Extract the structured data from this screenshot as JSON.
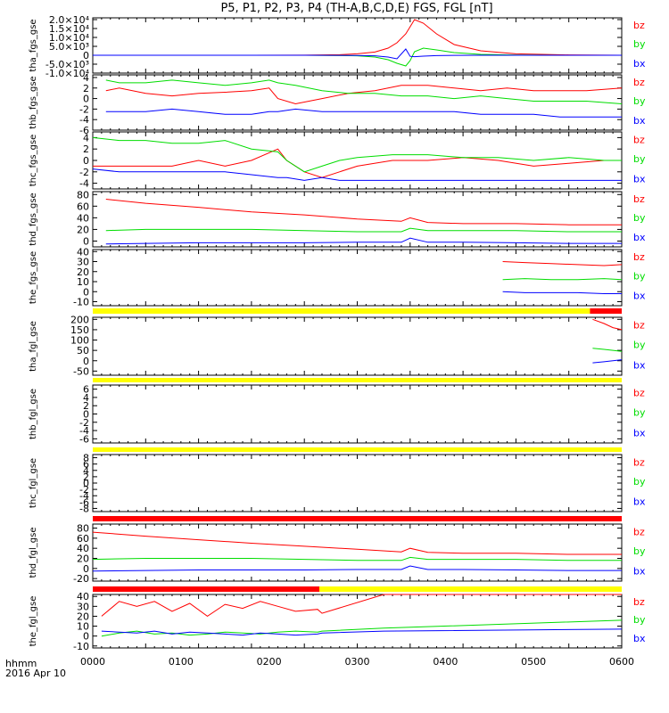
{
  "title": "P5, P1, P2, P3, P4 (TH-A,B,C,D,E) FGS, FGL [nT]",
  "xaxis": {
    "tick_labels": [
      "0000",
      "0100",
      "0200",
      "0300",
      "0400",
      "0500",
      "0600"
    ],
    "footer_left": "hhmm",
    "footer_date": "2016 Apr 10"
  },
  "colors": {
    "bz": "#ff0000",
    "by": "#00dd00",
    "bx": "#0000ff",
    "bar_yellow": "#ffff00",
    "bar_red": "#ff0000"
  },
  "chart_data": [
    {
      "type": "line",
      "ylabel": "tha_fgs_gse",
      "ytick_labels": [
        "2.0×10⁴",
        "1.5×10⁴",
        "1.0×10⁴",
        "5.0×10³",
        "0",
        "-5.0×10³",
        "-1.0×10⁴"
      ],
      "ytick_values": [
        20000,
        15000,
        10000,
        5000,
        0,
        -5000,
        -10000
      ],
      "ylim": [
        -10000,
        21000
      ],
      "x": [
        0,
        180,
        240,
        280,
        300,
        320,
        335,
        345,
        355,
        360,
        365,
        375,
        390,
        410,
        440,
        480,
        540,
        600
      ],
      "series": [
        {
          "name": "bz",
          "values": [
            0,
            0,
            50,
            300,
            800,
            1800,
            4000,
            7000,
            12000,
            16000,
            20000,
            18000,
            12000,
            6000,
            2500,
            800,
            200,
            0
          ]
        },
        {
          "name": "by",
          "values": [
            0,
            0,
            0,
            -100,
            -300,
            -1000,
            -2500,
            -4500,
            -6000,
            -3000,
            2000,
            4000,
            3000,
            1500,
            500,
            150,
            0,
            0
          ]
        },
        {
          "name": "bx",
          "values": [
            0,
            0,
            0,
            -50,
            -100,
            -300,
            -1000,
            -2000,
            3500,
            -600,
            -800,
            -500,
            -200,
            -50,
            0,
            0,
            0,
            0
          ]
        }
      ]
    },
    {
      "type": "line",
      "ylabel": "thb_fgs_gse",
      "ytick_labels": [
        "4",
        "2",
        "0",
        "-2",
        "-4",
        "-6"
      ],
      "ytick_values": [
        4,
        2,
        0,
        -2,
        -4,
        -6
      ],
      "ylim": [
        -6,
        4.5
      ],
      "x": [
        15,
        30,
        60,
        90,
        120,
        150,
        180,
        200,
        210,
        230,
        260,
        290,
        320,
        350,
        380,
        410,
        440,
        470,
        500,
        530,
        560,
        600
      ],
      "series": [
        {
          "name": "bz",
          "values": [
            1.5,
            2,
            1,
            0.5,
            1.0,
            1.2,
            1.5,
            2,
            0,
            -1,
            0,
            1,
            1.5,
            2.5,
            2.5,
            2,
            1.5,
            2,
            1.5,
            1.5,
            1.5,
            2
          ]
        },
        {
          "name": "by",
          "values": [
            3.5,
            3,
            3,
            3.5,
            3,
            2.5,
            3,
            3.5,
            3,
            2.5,
            1.5,
            1,
            1,
            0.5,
            0.5,
            0,
            0.5,
            0,
            -0.5,
            -0.5,
            -0.5,
            -1
          ]
        },
        {
          "name": "bx",
          "values": [
            -2.5,
            -2.5,
            -2.5,
            -2,
            -2.5,
            -3,
            -3,
            -2.5,
            -2.5,
            -2,
            -2.5,
            -2.5,
            -2.5,
            -2.5,
            -2.5,
            -2.5,
            -3,
            -3,
            -3,
            -3.5,
            -3.5,
            -3.5
          ]
        }
      ]
    },
    {
      "type": "line",
      "ylabel": "thc_fgs_gse",
      "ytick_labels": [
        "4",
        "2",
        "0",
        "-2",
        "-4"
      ],
      "ytick_values": [
        4,
        2,
        0,
        -2,
        -4
      ],
      "ylim": [
        -5,
        5
      ],
      "x": [
        0,
        30,
        60,
        90,
        120,
        150,
        180,
        210,
        220,
        240,
        260,
        280,
        300,
        340,
        380,
        420,
        460,
        500,
        540,
        580,
        600
      ],
      "series": [
        {
          "name": "bz",
          "values": [
            -1,
            -1,
            -1,
            -1,
            0,
            -1,
            0,
            2,
            0,
            -2,
            -3,
            -2,
            -1,
            0,
            0,
            0.5,
            0,
            -1,
            -0.5,
            0,
            0
          ]
        },
        {
          "name": "by",
          "values": [
            4,
            3.5,
            3.5,
            3,
            3,
            3.5,
            2,
            1.5,
            0,
            -2,
            -1,
            0,
            0.5,
            1,
            1,
            0.5,
            0.5,
            0,
            0.5,
            0,
            0
          ]
        },
        {
          "name": "bx",
          "values": [
            -1.5,
            -2,
            -2,
            -2,
            -2,
            -2,
            -2.5,
            -3,
            -3,
            -3.5,
            -3,
            -3.5,
            -3.5,
            -3.5,
            -3.5,
            -3.5,
            -3.5,
            -3.5,
            -3.5,
            -3.5,
            -3.5
          ]
        }
      ]
    },
    {
      "type": "line",
      "ylabel": "thd_fgs_gse",
      "ytick_labels": [
        "80",
        "60",
        "40",
        "20",
        "0"
      ],
      "ytick_values": [
        80,
        60,
        40,
        20,
        0
      ],
      "ylim": [
        -10,
        85
      ],
      "x": [
        15,
        60,
        120,
        180,
        240,
        300,
        350,
        360,
        380,
        420,
        480,
        540,
        600
      ],
      "series": [
        {
          "name": "bz",
          "values": [
            72,
            65,
            58,
            50,
            45,
            38,
            34,
            40,
            32,
            30,
            30,
            28,
            28
          ]
        },
        {
          "name": "by",
          "values": [
            18,
            20,
            20,
            20,
            18,
            16,
            16,
            22,
            18,
            18,
            18,
            16,
            16
          ]
        },
        {
          "name": "bx",
          "values": [
            -5,
            -4,
            -3,
            -3,
            -3,
            -2,
            -2,
            5,
            -2,
            -2,
            -3,
            -4,
            -4
          ]
        }
      ]
    },
    {
      "type": "line",
      "ylabel": "the_fgs_gse",
      "ytick_labels": [
        "40",
        "30",
        "20",
        "10",
        "0",
        "-10"
      ],
      "ytick_values": [
        40,
        30,
        20,
        10,
        0,
        -10
      ],
      "ylim": [
        -14,
        42
      ],
      "x": [
        465,
        490,
        520,
        550,
        580,
        600
      ],
      "series": [
        {
          "name": "bz",
          "values": [
            30,
            29,
            28,
            27,
            26,
            27
          ]
        },
        {
          "name": "by",
          "values": [
            12,
            13,
            12,
            12,
            13,
            12
          ]
        },
        {
          "name": "bx",
          "values": [
            0,
            -1,
            -1,
            -1,
            -2,
            -2
          ]
        }
      ]
    },
    {
      "type": "line",
      "ylabel": "tha_fgl_gse",
      "ytick_labels": [
        "200",
        "150",
        "100",
        "50",
        "0",
        "-50"
      ],
      "ytick_values": [
        200,
        150,
        100,
        50,
        0,
        -50
      ],
      "ylim": [
        -70,
        210
      ],
      "x": [
        567,
        580,
        590,
        600
      ],
      "series": [
        {
          "name": "bz",
          "values": [
            200,
            180,
            160,
            150
          ]
        },
        {
          "name": "by",
          "values": [
            60,
            55,
            50,
            45
          ]
        },
        {
          "name": "bx",
          "values": [
            -10,
            -5,
            0,
            5
          ]
        }
      ]
    },
    {
      "type": "line",
      "ylabel": "thb_fgl_gse",
      "ytick_labels": [
        "6",
        "4",
        "2",
        "0",
        "-2",
        "-4",
        "-6"
      ],
      "ytick_values": [
        6,
        4,
        2,
        0,
        -2,
        -4,
        -6
      ],
      "ylim": [
        -7,
        7
      ],
      "x": [],
      "series": [
        {
          "name": "bz",
          "values": []
        },
        {
          "name": "by",
          "values": []
        },
        {
          "name": "bx",
          "values": []
        }
      ]
    },
    {
      "type": "line",
      "ylabel": "thc_fgl_gse",
      "ytick_labels": [
        "8",
        "6",
        "4",
        "2",
        "0",
        "-2",
        "-4",
        "-6",
        "-8"
      ],
      "ytick_values": [
        8,
        6,
        4,
        2,
        0,
        -2,
        -4,
        -6,
        -8
      ],
      "ylim": [
        -9,
        9
      ],
      "x": [],
      "series": [
        {
          "name": "bz",
          "values": []
        },
        {
          "name": "by",
          "values": []
        },
        {
          "name": "bx",
          "values": []
        }
      ]
    },
    {
      "type": "line",
      "ylabel": "thd_fgl_gse",
      "ytick_labels": [
        "80",
        "60",
        "40",
        "20",
        "0",
        "-20"
      ],
      "ytick_values": [
        80,
        60,
        40,
        20,
        0,
        -20
      ],
      "ylim": [
        -25,
        88
      ],
      "x": [
        0,
        60,
        120,
        180,
        240,
        300,
        350,
        360,
        380,
        420,
        480,
        540,
        600
      ],
      "series": [
        {
          "name": "bz",
          "values": [
            72,
            64,
            57,
            50,
            44,
            38,
            33,
            40,
            32,
            30,
            30,
            28,
            28
          ]
        },
        {
          "name": "by",
          "values": [
            18,
            20,
            20,
            20,
            18,
            16,
            16,
            22,
            18,
            18,
            18,
            16,
            16
          ]
        },
        {
          "name": "bx",
          "values": [
            -5,
            -4,
            -3,
            -3,
            -3,
            -2,
            -2,
            5,
            -2,
            -2,
            -3,
            -4,
            -4
          ]
        }
      ]
    },
    {
      "type": "line",
      "ylabel": "the_fgl_gse",
      "ytick_labels": [
        "40",
        "30",
        "20",
        "10",
        "0",
        "-10"
      ],
      "ytick_values": [
        40,
        30,
        20,
        10,
        0,
        -10
      ],
      "ylim": [
        -12,
        42
      ],
      "x": [
        10,
        30,
        50,
        70,
        90,
        110,
        130,
        150,
        170,
        190,
        210,
        230,
        255,
        260,
        330,
        600
      ],
      "series": [
        {
          "name": "bz",
          "values": [
            20,
            35,
            30,
            35,
            25,
            33,
            20,
            32,
            28,
            35,
            30,
            25,
            27,
            23,
            42,
            42
          ]
        },
        {
          "name": "by",
          "values": [
            0,
            3,
            5,
            2,
            3,
            1,
            2,
            4,
            3,
            2,
            4,
            5,
            4,
            5,
            8,
            16
          ]
        },
        {
          "name": "bx",
          "values": [
            5,
            4,
            3,
            5,
            2,
            4,
            3,
            2,
            1,
            3,
            2,
            1,
            2,
            3,
            5,
            7
          ]
        }
      ]
    }
  ],
  "status_bars": [
    {
      "after_panel": 4,
      "segments": [
        {
          "x0": 0,
          "x1": 564,
          "color": "bar_yellow"
        },
        {
          "x0": 564,
          "x1": 600,
          "color": "bar_red"
        }
      ]
    },
    {
      "after_panel": 5,
      "segments": [
        {
          "x0": 0,
          "x1": 600,
          "color": "bar_yellow"
        }
      ]
    },
    {
      "after_panel": 6,
      "segments": [
        {
          "x0": 0,
          "x1": 600,
          "color": "bar_yellow"
        }
      ]
    },
    {
      "after_panel": 7,
      "segments": [
        {
          "x0": 0,
          "x1": 600,
          "color": "bar_red"
        }
      ]
    },
    {
      "after_panel": 8,
      "segments": [
        {
          "x0": 0,
          "x1": 257,
          "color": "bar_red"
        },
        {
          "x0": 257,
          "x1": 600,
          "color": "bar_yellow"
        }
      ]
    }
  ]
}
